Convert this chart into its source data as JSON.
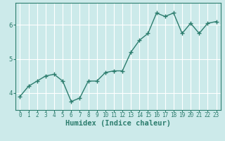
{
  "xlabel": "Humidex (Indice chaleur)",
  "ylabel": "",
  "x_values": [
    0,
    1,
    2,
    3,
    4,
    5,
    6,
    7,
    8,
    9,
    10,
    11,
    12,
    13,
    14,
    15,
    16,
    17,
    18,
    19,
    20,
    21,
    22,
    23
  ],
  "y_values": [
    3.9,
    4.2,
    4.35,
    4.5,
    4.55,
    4.35,
    3.75,
    3.85,
    4.35,
    4.35,
    4.6,
    4.65,
    4.65,
    5.2,
    5.55,
    5.75,
    6.35,
    6.25,
    6.35,
    5.75,
    6.05,
    5.75,
    6.05,
    6.1
  ],
  "line_color": "#2d7d6e",
  "marker": "+",
  "marker_size": 4,
  "background_color": "#cceaea",
  "grid_color": "#ffffff",
  "tick_color": "#2d7d6e",
  "label_color": "#2d7d6e",
  "yticks": [
    4,
    5,
    6
  ],
  "ylim": [
    3.5,
    6.65
  ],
  "xlim": [
    -0.5,
    23.5
  ],
  "xticks": [
    0,
    1,
    2,
    3,
    4,
    5,
    6,
    7,
    8,
    9,
    10,
    11,
    12,
    13,
    14,
    15,
    16,
    17,
    18,
    19,
    20,
    21,
    22,
    23
  ],
  "tick_fontsize": 5.5,
  "xlabel_fontsize": 7.5,
  "linewidth": 1.0,
  "marker_linewidth": 1.0
}
